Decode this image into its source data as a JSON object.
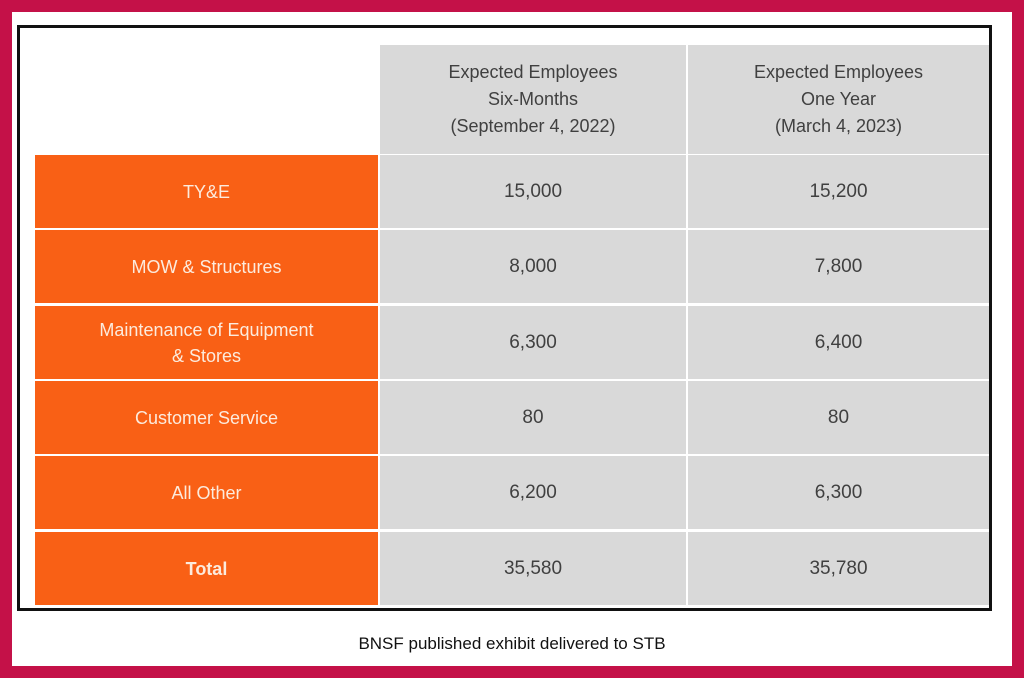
{
  "table": {
    "columns": [
      "Expected Employees\nSix-Months\n(September 4, 2022)",
      "Expected Employees\nOne Year\n(March 4, 2023)"
    ],
    "rows": [
      {
        "label": "TY&E",
        "six_months": "15,000",
        "one_year": "15,200"
      },
      {
        "label": "MOW & Structures",
        "six_months": "8,000",
        "one_year": "7,800"
      },
      {
        "label": "Maintenance of Equipment\n& Stores",
        "six_months": "6,300",
        "one_year": "6,400"
      },
      {
        "label": "Customer Service",
        "six_months": "80",
        "one_year": "80"
      },
      {
        "label": "All Other",
        "six_months": "6,200",
        "one_year": "6,300"
      },
      {
        "label": "Total",
        "six_months": "35,580",
        "one_year": "35,780"
      }
    ]
  },
  "caption": "BNSF published exhibit delivered to STB",
  "colors": {
    "border": "#C41148",
    "label_bg": "#F96015",
    "cell_bg": "#D9D9D9"
  }
}
